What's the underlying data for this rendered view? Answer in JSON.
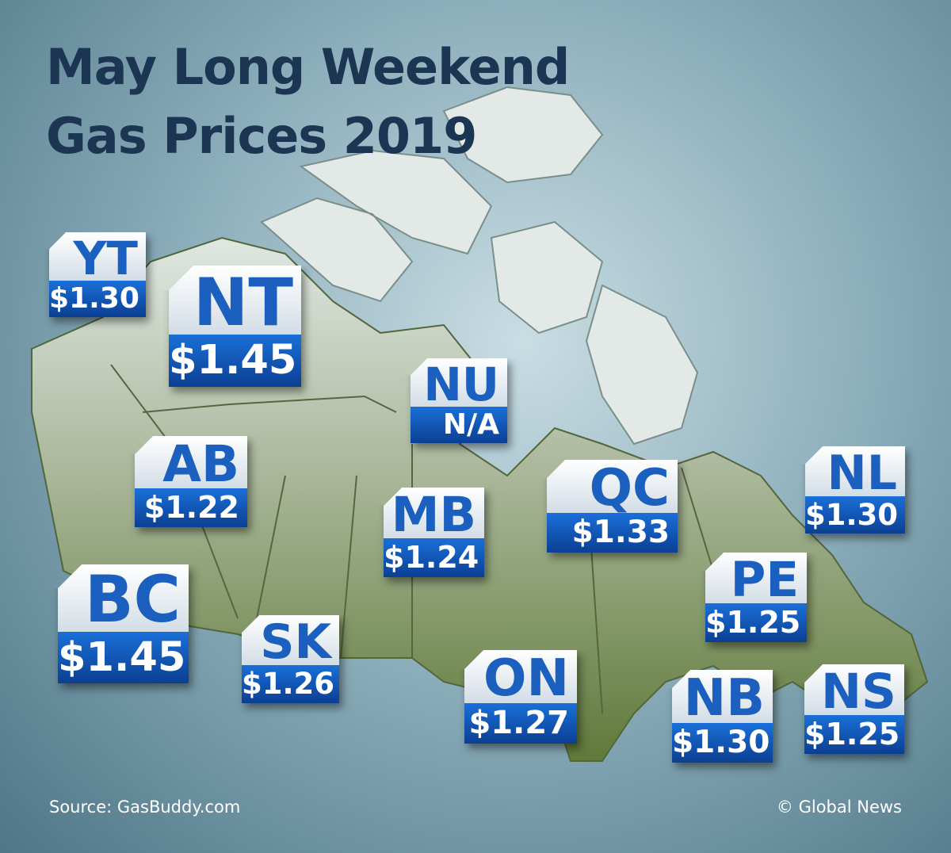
{
  "header": {
    "title_line1": "May Long Weekend",
    "title_line2": "Gas Prices 2019"
  },
  "provinces": [
    {
      "code": "YT",
      "price": "$1.30"
    },
    {
      "code": "NT",
      "price": "$1.45"
    },
    {
      "code": "NU",
      "price": "N/A"
    },
    {
      "code": "AB",
      "price": "$1.22"
    },
    {
      "code": "MB",
      "price": "$1.24"
    },
    {
      "code": "QC",
      "price": "$1.33"
    },
    {
      "code": "NL",
      "price": "$1.30"
    },
    {
      "code": "PE",
      "price": "$1.25"
    },
    {
      "code": "BC",
      "price": "$1.45"
    },
    {
      "code": "SK",
      "price": "$1.26"
    },
    {
      "code": "ON",
      "price": "$1.27"
    },
    {
      "code": "NB",
      "price": "$1.30"
    },
    {
      "code": "NS",
      "price": "$1.25"
    }
  ],
  "footer": {
    "source": "Source: GasBuddy.com",
    "credit": "© Global News"
  }
}
